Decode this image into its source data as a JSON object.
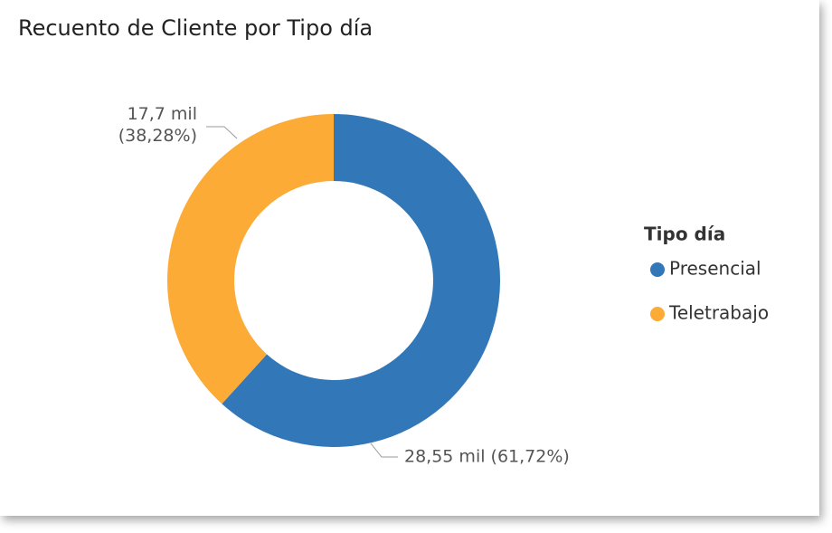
{
  "chart_data": {
    "type": "donut",
    "title": "Recuento de Cliente por Tipo día",
    "categories": [
      "Presencial",
      "Teletrabajo"
    ],
    "values": [
      28.55,
      17.7
    ],
    "value_labels": [
      "28,55 mil (61,72%)",
      "17,7 mil (38,28%)"
    ],
    "colors": [
      "#3277b7",
      "#fbab36"
    ],
    "legend_title": "Tipo día",
    "legend": "right"
  }
}
